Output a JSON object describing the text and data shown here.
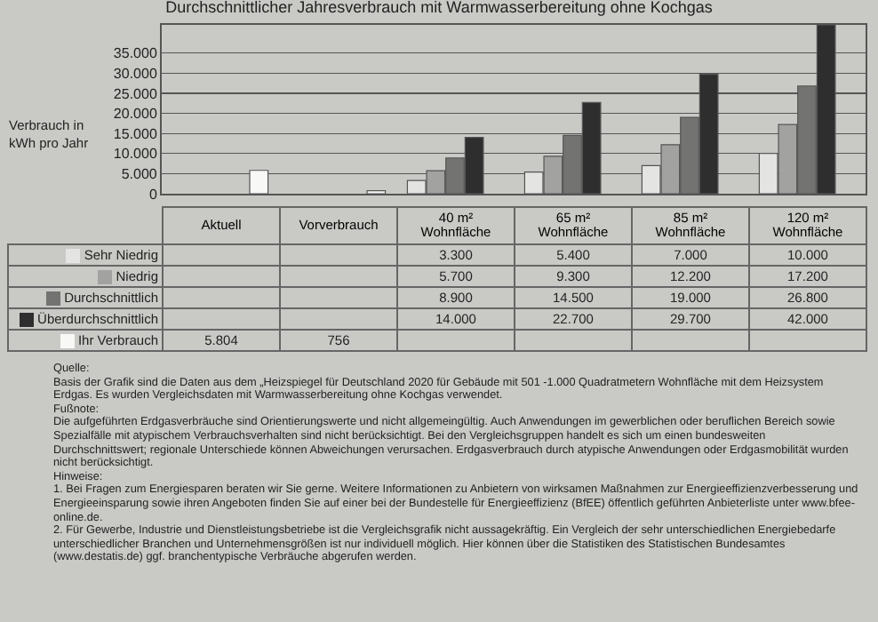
{
  "chart_data": {
    "type": "bar",
    "title": "Durchschnittlicher Jahresverbrauch mit Warmwasserbereitung ohne Kochgas",
    "ylabel": "Verbrauch in kWh pro Jahr",
    "categories": [
      "Aktuell",
      "Vorverbrauch",
      "40 m² Wohnfläche",
      "65 m² Wohnfläche",
      "85 m² Wohnfläche",
      "120 m² Wohnfläche"
    ],
    "series": [
      {
        "name": "Sehr Niedrig",
        "color": "#e4e4e2",
        "values": [
          null,
          null,
          3300,
          5400,
          7000,
          10000
        ],
        "value_labels": [
          null,
          null,
          "3.300",
          "5.400",
          "7.000",
          "10.000"
        ]
      },
      {
        "name": "Niedrig",
        "color": "#a2a2a0",
        "values": [
          null,
          null,
          5700,
          9300,
          12200,
          17200
        ],
        "value_labels": [
          null,
          null,
          "5.700",
          "9.300",
          "12.200",
          "17.200"
        ]
      },
      {
        "name": "Durchschnittlich",
        "color": "#737371",
        "values": [
          null,
          null,
          8900,
          14500,
          19000,
          26800
        ],
        "value_labels": [
          null,
          null,
          "8.900",
          "14.500",
          "19.000",
          "26.800"
        ]
      },
      {
        "name": "Überdurchschnittlich",
        "color": "#2e2e2e",
        "values": [
          null,
          null,
          14000,
          22700,
          29700,
          42000
        ],
        "value_labels": [
          null,
          null,
          "14.000",
          "22.700",
          "29.700",
          "42.000"
        ]
      },
      {
        "name": "Ihr Verbrauch",
        "color": "#f8f8f6",
        "values": [
          5804,
          756,
          null,
          null,
          null,
          null
        ],
        "value_labels": [
          "5.804",
          "756",
          null,
          null,
          null,
          null
        ]
      }
    ],
    "ylim": [
      0,
      42000
    ],
    "yticks": [
      {
        "value": 0,
        "label": "0"
      },
      {
        "value": 5000,
        "label": "5.000"
      },
      {
        "value": 10000,
        "label": "10.000"
      },
      {
        "value": 15000,
        "label": "15.000"
      },
      {
        "value": 20000,
        "label": "20.000"
      },
      {
        "value": 25000,
        "label": "25.000"
      },
      {
        "value": 30000,
        "label": "30.000"
      },
      {
        "value": 35000,
        "label": "35.000"
      }
    ],
    "grid": "y",
    "tick_labels": "y",
    "legend": "bottom left",
    "annotations": [
      "Quelle:",
      "Basis der Grafik sind die Daten aus dem „Heizspiegel für Deutschland 2020 für Gebäude mit 501 -1.000 Quadratmetern Wohnfläche mit dem Heizsystem Erdgas. Es wurden Vergleichsdaten mit Warmwasserbereitung ohne Kochgas verwendet.",
      "Fußnote:",
      "Die aufgeführten Erdgasverbräuche sind Orientierungswerte und nicht allgemeingültig. Auch Anwendungen im gewerblichen oder beruflichen Bereich sowie Spezialfälle mit atypischem Verbrauchsverhalten sind nicht berücksichtigt. Bei den Vergleichsgruppen handelt es sich um einen bundesweiten Durchschnittswert; regionale Unterschiede können Abweichungen verursachen. Erdgasverbrauch durch atypische Anwendungen oder Erdgasmobilität wurden nicht berücksichtigt.",
      "Hinweise:",
      "1. Bei Fragen zum Energiesparen beraten wir Sie gerne. Weitere Informationen zu Anbietern von wirksamen Maßnahmen zur Energieeffizienzverbesserung und Energieeinsparung sowie ihren Angeboten finden Sie auf einer bei der Bundestelle für Energieeffizienz (BfEE) öffentlich geführten Anbieterliste unter www.bfee-online.de.",
      "2. Für Gewerbe, Industrie und Dienstleistungsbetriebe ist die Vergleichsgrafik nicht aussagekräftig. Ein Vergleich der sehr unterschiedlichen Energiebedarfe unterschiedlicher Branchen und Unternehmensgrößen ist nur individuell möglich. Hier können über die Statistiken des Statistischen Bundesamtes (www.destatis.de) ggf. branchentypische Verbräuche abgerufen werden."
    ]
  }
}
